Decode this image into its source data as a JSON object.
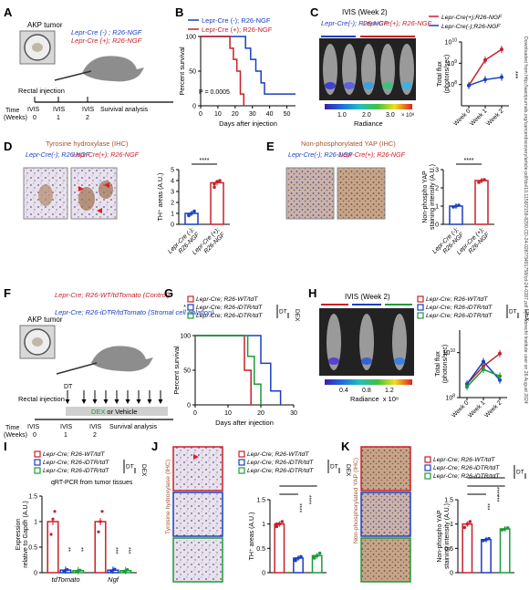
{
  "panels": {
    "A": {
      "letter": "A",
      "tumor_label": "AKP tumor",
      "legend": [
        {
          "text": "Lepr-Cre (-) ; R26-NGF",
          "color": "#1a3fbf"
        },
        {
          "text": "Lepr-Cre (+); R26-NGF",
          "color": "#c8202a"
        }
      ],
      "injection_label": "Rectal injection",
      "time_label": "Time\n(Weeks)",
      "timeline": [
        {
          "label": "IVIS",
          "week": "0"
        },
        {
          "label": "IVIS",
          "week": "1"
        },
        {
          "label": "IVIS",
          "week": "2"
        },
        {
          "label": "Survival analysis",
          "week": ""
        }
      ]
    },
    "B": {
      "letter": "B",
      "legend": [
        {
          "text": "Lepr-Cre (-); R26-NGF",
          "color": "#1a3fbf"
        },
        {
          "text": "Lepr-Cre (+); R26-NGF",
          "color": "#c8202a"
        }
      ],
      "pvalue": "P = 0.0005",
      "ylabel": "Percent survival",
      "xlabel": "Days after injection"
    },
    "C": {
      "letter": "C",
      "ivis_title": "IVIS (Week 2)",
      "group_neg": "Lepr-Cre(-);\nR26-NGF",
      "group_pos": "Lepr-Cre(+);\nR26-NGF",
      "scale_ticks": [
        "1.0",
        "2.0",
        "3.0"
      ],
      "scale_exp": "× 10⁸",
      "scale_label": "Radiance",
      "legend": [
        {
          "text": "Lepr-Cre(+);R26-NGF",
          "color": "#c8202a"
        },
        {
          "text": "Lepr-Cre(-);R26-NGF",
          "color": "#1a3fbf"
        }
      ],
      "ylabel": "Total flux\n(photons/sec)",
      "sig": "***"
    },
    "D": {
      "letter": "D",
      "stain_title": "Tyrosine hydroxylase (IHC)",
      "group_pos": "Lepr-Cre(+);\nR26-NGF",
      "group_neg": "Lepr-Cre(-);\nR26-NGF",
      "ylabel": "TH⁺ areas (A.U.)",
      "sig": "****",
      "xcats": [
        "Lepr-Cre (-);\nR26-NGF",
        "Lepr-Cre (+);\nR26-NGF"
      ]
    },
    "E": {
      "letter": "E",
      "stain_title": "Non-phosphorylated YAP (IHC)",
      "group_neg": "Lepr-Cre(-);\nR26-NGF",
      "group_pos": "Lepr-Cre(+);\nR26-NGF",
      "ylabel": "Non-phospho YAP\nstaining intensity (A.U.)",
      "sig": "****",
      "xcats": [
        "Lepr-Cre (-);\nR26-NGF",
        "Lepr-Cre (+);\nR26-NGF"
      ]
    },
    "F": {
      "letter": "F",
      "tumor_label": "AKP tumor",
      "line1": "Lepr-Cre; R26-WT/tdTomato\n(Control)",
      "line2": "Lepr-Cre; R26-iDTR/tdTomato\n(Stromal cell ablation)",
      "dt_label": "DT",
      "injection_label": "Rectal injection",
      "bar_label": "DEX or Vehicle",
      "bar_label_dex": "DEX",
      "time_label": "Time\n(Weeks)",
      "timeline": [
        {
          "label": "IVIS",
          "week": "0"
        },
        {
          "label": "IVIS",
          "week": "1"
        },
        {
          "label": "IVIS",
          "week": "2"
        },
        {
          "label": "Survival analysis",
          "week": ""
        }
      ]
    },
    "G": {
      "letter": "G",
      "legend": [
        {
          "text": "Lepr-Cre; R26-WT/tdT",
          "color": "#c8202a"
        },
        {
          "text": "Lepr-Cre; R26-iDTR/tdT",
          "color": "#1a3fbf"
        },
        {
          "text": "Lepr-Cre; R26-iDTR/tdT",
          "color": "#1f9a3a"
        }
      ],
      "dt": "DT",
      "dex": "DEX",
      "ylabel": "Percent survival",
      "xlabel": "Days after injection",
      "sig": "*"
    },
    "H": {
      "letter": "H",
      "ivis_title": "IVIS (Week 2)",
      "scale_ticks": [
        "0.4",
        "0.8",
        "1.2"
      ],
      "scale_exp": "x 10⁸",
      "scale_label": "Radiance",
      "legend": [
        {
          "text": "Lepr-Cre; R26-WT/tdT",
          "color": "#c8202a"
        },
        {
          "text": "Lepr-Cre; R26-iDTR/tdT",
          "color": "#1a3fbf"
        },
        {
          "text": "Lepr-Cre; R26-iDTR/tdT",
          "color": "#1f9a3a"
        }
      ],
      "dt": "DT",
      "dex": "DEX",
      "ylabel": "Total flux\n(photons/sec)"
    },
    "I": {
      "letter": "I",
      "legend": [
        {
          "text": "Lepr-Cre; R26-WT/tdT",
          "color": "#c8202a"
        },
        {
          "text": "Lepr-Cre; R26-iDTR/tdT",
          "color": "#1a3fbf"
        },
        {
          "text": "Lepr-Cre; R26-iDTR/tdT",
          "color": "#1f9a3a"
        }
      ],
      "dt": "DT",
      "dex": "DEX",
      "subtitle": "qRT-PCR from tumor tissues",
      "ylabel": "Expression\nrelative to Gapdh (A.U.)",
      "sig": [
        "**",
        "**",
        "***",
        "***"
      ]
    },
    "J": {
      "letter": "J",
      "stain_title": "Tyrosine hydroxylase (IHC)",
      "legend": [
        {
          "text": "Lepr-Cre; R26-WT/tdT",
          "color": "#c8202a"
        },
        {
          "text": "Lepr-Cre; R26-iDTR/tdT",
          "color": "#1a3fbf"
        },
        {
          "text": "Lepr-Cre; R26-iDTR/tdT",
          "color": "#1f9a3a"
        }
      ],
      "dt": "DT",
      "dex": "DEX",
      "ylabel": "TH⁺ areas (A.U.)",
      "sig": [
        "****",
        "****"
      ]
    },
    "K": {
      "letter": "K",
      "stain_title": "Non-phosphorylated YAP (IHC)",
      "legend": [
        {
          "text": "Lepr-Cre; R26-WT/tdT",
          "color": "#c8202a"
        },
        {
          "text": "Lepr-Cre; R26-iDTR/tdT",
          "color": "#1a3fbf"
        },
        {
          "text": "Lepr-Cre; R26-iDTR/tdT",
          "color": "#1f9a3a"
        }
      ],
      "dt": "DT",
      "dex": "DEX",
      "ylabel": "Non-phospho YAP\nstaining intensity (A.U.)",
      "sig": [
        "***",
        "***",
        "****"
      ]
    }
  },
  "watermark": "Downloaded from http://aacrjournals.org/cancerdiscovery/article-pdf/doi/10.1158/2159-8290.CD-24-0287/3491758/cd-24-0287.pdf by Hubrecht Institute user on 26 August 2024",
  "colors": {
    "red": "#c8202a",
    "blue": "#1a3fbf",
    "green": "#1f9a3a"
  },
  "chart_data": [
    {
      "panel": "B",
      "type": "line",
      "ylabel": "Percent survival",
      "xlabel": "Days after injection",
      "xlim": [
        0,
        55
      ],
      "ylim": [
        0,
        100
      ],
      "xticks": [
        0,
        10,
        20,
        30,
        40,
        50
      ],
      "yticks": [
        0,
        50,
        100
      ],
      "series": [
        {
          "name": "Lepr-Cre (-); R26-NGF",
          "color": "#1a3fbf",
          "steps": [
            [
              0,
              100
            ],
            [
              26,
              100
            ],
            [
              26,
              83
            ],
            [
              29,
              83
            ],
            [
              29,
              67
            ],
            [
              32,
              67
            ],
            [
              32,
              50
            ],
            [
              35,
              50
            ],
            [
              35,
              33
            ],
            [
              37,
              33
            ],
            [
              37,
              17
            ],
            [
              55,
              17
            ]
          ]
        },
        {
          "name": "Lepr-Cre (+); R26-NGF",
          "color": "#c8202a",
          "steps": [
            [
              0,
              100
            ],
            [
              17,
              100
            ],
            [
              17,
              83
            ],
            [
              19,
              83
            ],
            [
              19,
              67
            ],
            [
              21,
              67
            ],
            [
              21,
              50
            ],
            [
              23,
              50
            ],
            [
              23,
              17
            ],
            [
              25,
              17
            ],
            [
              25,
              0
            ]
          ]
        }
      ]
    },
    {
      "panel": "C",
      "type": "line",
      "ylabel": "Total flux (photons/sec)",
      "yscale": "log",
      "ylim": [
        10000000.0,
        10000000000.0
      ],
      "yticks_exp": [
        8,
        9,
        10
      ],
      "categories": [
        "Week 0",
        "Week 1",
        "Week 2"
      ],
      "series": [
        {
          "name": "Lepr-Cre(+);R26-NGF",
          "color": "#c8202a",
          "values": [
            90000000.0,
            1400000000.0,
            4500000000.0
          ]
        },
        {
          "name": "Lepr-Cre(-);R26-NGF",
          "color": "#1a3fbf",
          "values": [
            90000000.0,
            170000000.0,
            220000000.0
          ]
        }
      ]
    },
    {
      "panel": "D",
      "type": "bar",
      "ylabel": "TH⁺ areas (A.U.)",
      "ylim": [
        0,
        5
      ],
      "yticks": [
        0,
        1,
        2,
        3,
        4,
        5
      ],
      "categories": [
        "Lepr-Cre (-); R26-NGF",
        "Lepr-Cre (+); R26-NGF"
      ],
      "values": [
        1.0,
        3.8
      ],
      "colors": [
        "#1a3fbf",
        "#c8202a"
      ],
      "points": [
        [
          0.8,
          1.0,
          1.2,
          0.9
        ],
        [
          3.4,
          3.9,
          4.0,
          3.7
        ]
      ]
    },
    {
      "panel": "E",
      "type": "bar",
      "ylabel": "Non-phospho YAP staining intensity (A.U.)",
      "ylim": [
        0,
        3
      ],
      "yticks": [
        0,
        1,
        2,
        3
      ],
      "categories": [
        "Lepr-Cre (-); R26-NGF",
        "Lepr-Cre (+); R26-NGF"
      ],
      "values": [
        1.0,
        2.4
      ],
      "colors": [
        "#1a3fbf",
        "#c8202a"
      ],
      "points": [
        [
          0.95,
          1.0,
          1.05
        ],
        [
          2.3,
          2.4,
          2.45
        ]
      ]
    },
    {
      "panel": "G",
      "type": "line",
      "ylabel": "Percent survival",
      "xlabel": "Days after injection",
      "xlim": [
        0,
        30
      ],
      "ylim": [
        0,
        100
      ],
      "xticks": [
        0,
        10,
        20,
        30
      ],
      "yticks": [
        0,
        50,
        100
      ],
      "series": [
        {
          "name": "Lepr-Cre; R26-WT/tdT",
          "color": "#c8202a",
          "steps": [
            [
              0,
              100
            ],
            [
              15,
              100
            ],
            [
              15,
              50
            ],
            [
              17,
              50
            ],
            [
              17,
              0
            ]
          ]
        },
        {
          "name": "Lepr-Cre; R26-iDTR/tdT",
          "color": "#1a3fbf",
          "steps": [
            [
              0,
              100
            ],
            [
              20,
              100
            ],
            [
              20,
              60
            ],
            [
              23,
              60
            ],
            [
              23,
              20
            ],
            [
              26,
              20
            ],
            [
              26,
              0
            ]
          ]
        },
        {
          "name": "Lepr-Cre; R26-iDTR/tdT",
          "color": "#1f9a3a",
          "steps": [
            [
              0,
              100
            ],
            [
              16,
              100
            ],
            [
              16,
              70
            ],
            [
              18,
              70
            ],
            [
              18,
              30
            ],
            [
              20,
              30
            ],
            [
              20,
              0
            ]
          ]
        }
      ]
    },
    {
      "panel": "H",
      "type": "line",
      "ylabel": "Total flux (photons/sec)",
      "yscale": "log",
      "ylim": [
        100000000.0,
        100000000000.0
      ],
      "yticks_exp": [
        8,
        10
      ],
      "categories": [
        "Week 0",
        "Week 1",
        "Week 2"
      ],
      "series": [
        {
          "name": "Lepr-Cre; R26-WT/tdT",
          "color": "#c8202a",
          "values": [
            400000000.0,
            2500000000.0,
            9000000000.0
          ]
        },
        {
          "name": "Lepr-Cre; R26-iDTR/tdT",
          "color": "#1a3fbf",
          "values": [
            400000000.0,
            4000000000.0,
            600000000.0
          ]
        },
        {
          "name": "Lepr-Cre; R26-iDTR/tdT",
          "color": "#1f9a3a",
          "values": [
            300000000.0,
            1800000000.0,
            900000000.0
          ]
        }
      ]
    },
    {
      "panel": "I",
      "type": "bar",
      "ylabel": "Expression relative to Gapdh (A.U.)",
      "ylim": [
        0,
        1.5
      ],
      "yticks": [
        0,
        0.5,
        1.0,
        1.5
      ],
      "categories": [
        "tdTomato",
        "Ngf"
      ],
      "series": [
        {
          "name": "Lepr-Cre; R26-WT/tdT",
          "color": "#c8202a",
          "values": [
            1.0,
            1.0
          ],
          "points": [
            [
              0.75,
              1.05,
              1.2
            ],
            [
              0.8,
              1.0,
              1.2
            ]
          ]
        },
        {
          "name": "Lepr-Cre; R26-iDTR/tdT",
          "color": "#1a3fbf",
          "values": [
            0.05,
            0.05
          ],
          "points": [
            [
              0.03,
              0.05,
              0.06
            ],
            [
              0.03,
              0.05,
              0.07
            ]
          ]
        },
        {
          "name": "Lepr-Cre; R26-iDTR/tdT",
          "color": "#1f9a3a",
          "values": [
            0.04,
            0.04
          ],
          "points": [
            [
              0.02,
              0.04,
              0.05
            ],
            [
              0.02,
              0.04,
              0.06
            ]
          ]
        }
      ]
    },
    {
      "panel": "J",
      "type": "bar",
      "ylabel": "TH⁺ areas (A.U.)",
      "ylim": [
        0,
        1.5
      ],
      "yticks": [
        0,
        0.5,
        1.0,
        1.5
      ],
      "categories": [
        "Lepr-Cre; R26-WT/tdT",
        "Lepr-Cre; R26-iDTR/tdT",
        "Lepr-Cre; R26-iDTR/tdT"
      ],
      "values": [
        1.0,
        0.3,
        0.35
      ],
      "colors": [
        "#c8202a",
        "#1a3fbf",
        "#1f9a3a"
      ],
      "points": [
        [
          0.95,
          1.0,
          1.05,
          1.0
        ],
        [
          0.25,
          0.3,
          0.33,
          0.28
        ],
        [
          0.3,
          0.35,
          0.4,
          0.33
        ]
      ]
    },
    {
      "panel": "K",
      "type": "bar",
      "ylabel": "Non-phospho YAP staining intensity (A.U.)",
      "ylim": [
        0,
        1.5
      ],
      "yticks": [
        0,
        0.5,
        1.0,
        1.5
      ],
      "categories": [
        "Lepr-Cre; R26-WT/tdT",
        "Lepr-Cre; R26-iDTR/tdT",
        "Lepr-Cre; R26-iDTR/tdT"
      ],
      "values": [
        1.0,
        0.68,
        0.9
      ],
      "colors": [
        "#c8202a",
        "#1a3fbf",
        "#1f9a3a"
      ],
      "points": [
        [
          0.93,
          1.0,
          1.05
        ],
        [
          0.66,
          0.68,
          0.7
        ],
        [
          0.88,
          0.9,
          0.92
        ]
      ]
    }
  ]
}
